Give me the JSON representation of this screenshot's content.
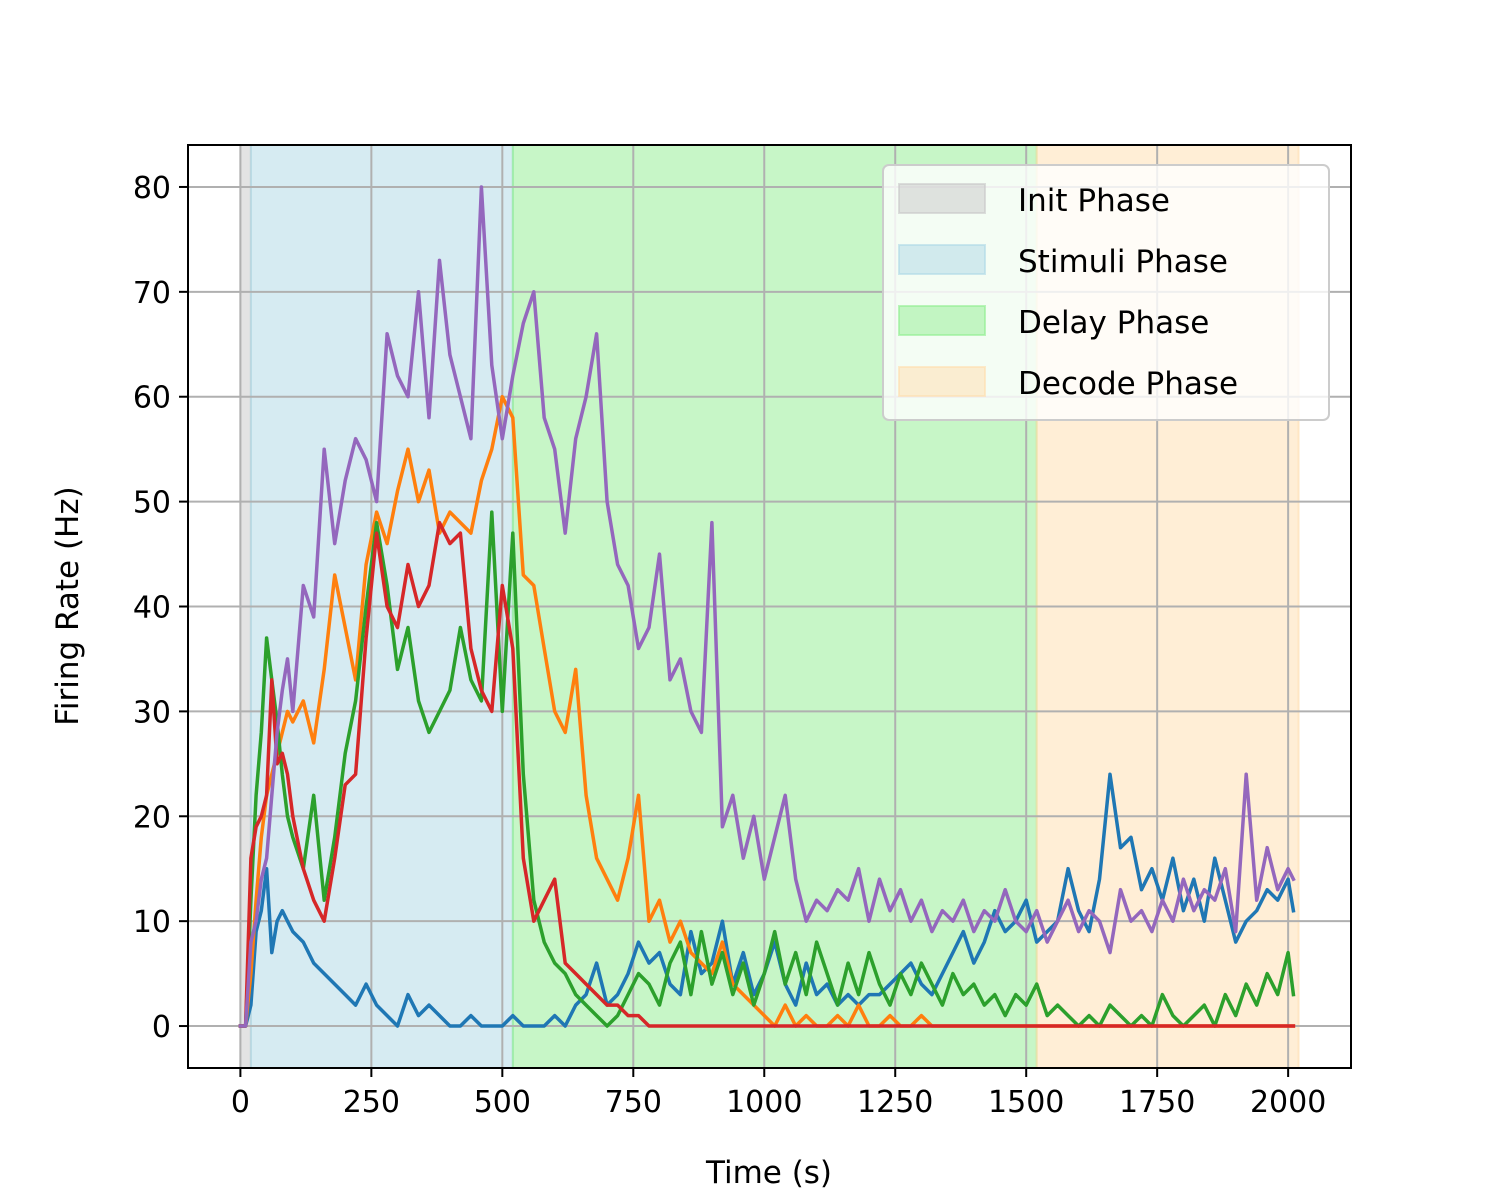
{
  "chart_data": {
    "type": "line",
    "title": "",
    "xlabel": "Time (s)",
    "ylabel": "Firing Rate (Hz)",
    "xlim": [
      -100,
      2120
    ],
    "ylim": [
      -4,
      84
    ],
    "xticks": [
      0,
      250,
      500,
      750,
      1000,
      1250,
      1500,
      1750,
      2000
    ],
    "yticks": [
      0,
      10,
      20,
      30,
      40,
      50,
      60,
      70,
      80
    ],
    "grid": true,
    "legend_position": "top-right",
    "phases": [
      {
        "name": "Init Phase",
        "start": 0,
        "end": 20,
        "color": "#c8c8c8"
      },
      {
        "name": "Stimuli Phase",
        "start": 20,
        "end": 520,
        "color": "#add8e6"
      },
      {
        "name": "Delay Phase",
        "start": 520,
        "end": 1520,
        "color": "#90ee90"
      },
      {
        "name": "Decode Phase",
        "start": 1520,
        "end": 2020,
        "color": "#ffdead"
      }
    ],
    "series": [
      {
        "color": "#1f77b4",
        "x": [
          0,
          10,
          20,
          30,
          40,
          50,
          60,
          70,
          80,
          90,
          100,
          120,
          140,
          160,
          180,
          200,
          220,
          240,
          260,
          280,
          300,
          320,
          340,
          360,
          380,
          400,
          420,
          440,
          460,
          480,
          500,
          520,
          540,
          560,
          580,
          600,
          620,
          640,
          660,
          680,
          700,
          720,
          740,
          760,
          780,
          800,
          820,
          840,
          860,
          880,
          900,
          920,
          940,
          960,
          980,
          1000,
          1020,
          1040,
          1060,
          1080,
          1100,
          1120,
          1140,
          1160,
          1180,
          1200,
          1220,
          1240,
          1260,
          1280,
          1300,
          1320,
          1340,
          1360,
          1380,
          1400,
          1420,
          1440,
          1460,
          1480,
          1500,
          1520,
          1540,
          1560,
          1580,
          1600,
          1620,
          1640,
          1660,
          1680,
          1700,
          1720,
          1740,
          1760,
          1780,
          1800,
          1820,
          1840,
          1860,
          1880,
          1900,
          1920,
          1940,
          1960,
          1980,
          2000,
          2010
        ],
        "values": [
          0,
          0,
          2,
          9,
          11,
          15,
          7,
          10,
          11,
          10,
          9,
          8,
          6,
          5,
          4,
          3,
          2,
          4,
          2,
          1,
          0,
          3,
          1,
          2,
          1,
          0,
          0,
          1,
          0,
          0,
          0,
          1,
          0,
          0,
          0,
          1,
          0,
          2,
          3,
          6,
          2,
          3,
          5,
          8,
          6,
          7,
          4,
          3,
          9,
          5,
          6,
          10,
          4,
          7,
          3,
          5,
          8,
          4,
          2,
          6,
          3,
          4,
          2,
          3,
          2,
          3,
          3,
          4,
          5,
          6,
          4,
          3,
          5,
          7,
          9,
          6,
          8,
          11,
          9,
          10,
          12,
          8,
          9,
          10,
          15,
          11,
          9,
          14,
          24,
          17,
          18,
          13,
          15,
          12,
          16,
          11,
          14,
          10,
          16,
          12,
          8,
          10,
          11,
          13,
          12,
          14,
          11
        ],
        "name": ""
      },
      {
        "color": "#ff7f0e",
        "x": [
          0,
          10,
          20,
          30,
          40,
          50,
          60,
          70,
          80,
          90,
          100,
          120,
          140,
          160,
          180,
          200,
          220,
          240,
          260,
          280,
          300,
          320,
          340,
          360,
          380,
          400,
          420,
          440,
          460,
          480,
          500,
          520,
          540,
          560,
          580,
          600,
          620,
          640,
          660,
          680,
          700,
          720,
          740,
          760,
          780,
          800,
          820,
          840,
          860,
          880,
          900,
          920,
          940,
          960,
          980,
          1000,
          1020,
          1040,
          1060,
          1080,
          1100,
          1120,
          1140,
          1160,
          1180,
          1200,
          1220,
          1240,
          1260,
          1280,
          1300,
          1320,
          1340,
          1360,
          1380,
          1400,
          1420,
          1440,
          1460,
          1480,
          1500,
          1520,
          1540,
          1560,
          1580,
          1600,
          1620,
          1640,
          1660,
          1680,
          1700,
          1720,
          1740,
          1760,
          1780,
          1800,
          1820,
          1840,
          1860,
          1880,
          1900,
          1920,
          1940,
          1960,
          1980,
          2000,
          2010
        ],
        "values": [
          0,
          0,
          5,
          12,
          18,
          22,
          24,
          26,
          28,
          30,
          29,
          31,
          27,
          34,
          43,
          38,
          33,
          44,
          49,
          46,
          51,
          55,
          50,
          53,
          47,
          49,
          48,
          47,
          52,
          55,
          60,
          58,
          43,
          42,
          36,
          30,
          28,
          34,
          22,
          16,
          14,
          12,
          16,
          22,
          10,
          12,
          8,
          10,
          7,
          6,
          5,
          8,
          4,
          3,
          2,
          1,
          0,
          2,
          0,
          1,
          0,
          0,
          1,
          0,
          2,
          0,
          0,
          1,
          0,
          0,
          1,
          0,
          0,
          0,
          0,
          0,
          0,
          0,
          0,
          0,
          0,
          0,
          0,
          0,
          0,
          0,
          0,
          0,
          0,
          0,
          0,
          0,
          0,
          0,
          0,
          0,
          0,
          0,
          0,
          0,
          0,
          0,
          0,
          0,
          0,
          0,
          0
        ],
        "name": ""
      },
      {
        "color": "#2ca02c",
        "x": [
          0,
          10,
          20,
          30,
          40,
          50,
          60,
          70,
          80,
          90,
          100,
          120,
          140,
          160,
          180,
          200,
          220,
          240,
          260,
          280,
          300,
          320,
          340,
          360,
          380,
          400,
          420,
          440,
          460,
          480,
          500,
          520,
          540,
          560,
          580,
          600,
          620,
          640,
          660,
          680,
          700,
          720,
          740,
          760,
          780,
          800,
          820,
          840,
          860,
          880,
          900,
          920,
          940,
          960,
          980,
          1000,
          1020,
          1040,
          1060,
          1080,
          1100,
          1120,
          1140,
          1160,
          1180,
          1200,
          1220,
          1240,
          1260,
          1280,
          1300,
          1320,
          1340,
          1360,
          1380,
          1400,
          1420,
          1440,
          1460,
          1480,
          1500,
          1520,
          1540,
          1560,
          1580,
          1600,
          1620,
          1640,
          1660,
          1680,
          1700,
          1720,
          1740,
          1760,
          1780,
          1800,
          1820,
          1840,
          1860,
          1880,
          1900,
          1920,
          1940,
          1960,
          1980,
          2000,
          2010
        ],
        "values": [
          0,
          0,
          12,
          22,
          28,
          37,
          33,
          29,
          24,
          20,
          18,
          15,
          22,
          12,
          18,
          26,
          31,
          40,
          48,
          42,
          34,
          38,
          31,
          28,
          30,
          32,
          38,
          33,
          31,
          49,
          30,
          47,
          24,
          12,
          8,
          6,
          5,
          3,
          2,
          1,
          0,
          1,
          3,
          5,
          4,
          2,
          6,
          8,
          3,
          9,
          4,
          7,
          3,
          6,
          2,
          5,
          9,
          4,
          7,
          3,
          8,
          5,
          2,
          6,
          3,
          7,
          4,
          2,
          5,
          3,
          6,
          4,
          2,
          5,
          3,
          4,
          2,
          3,
          1,
          3,
          2,
          4,
          1,
          2,
          1,
          0,
          1,
          0,
          2,
          1,
          0,
          1,
          0,
          3,
          1,
          0,
          1,
          2,
          0,
          3,
          1,
          4,
          2,
          5,
          3,
          7,
          3
        ],
        "name": ""
      },
      {
        "color": "#d62728",
        "x": [
          0,
          10,
          20,
          30,
          40,
          50,
          60,
          70,
          80,
          90,
          100,
          120,
          140,
          160,
          180,
          200,
          220,
          240,
          260,
          280,
          300,
          320,
          340,
          360,
          380,
          400,
          420,
          440,
          460,
          480,
          500,
          520,
          540,
          560,
          580,
          600,
          620,
          640,
          660,
          680,
          700,
          720,
          740,
          760,
          780,
          800,
          820,
          840,
          860,
          880,
          900,
          920,
          940,
          960,
          980,
          1000,
          1020,
          1040,
          1060,
          1080,
          1100,
          1120,
          1140,
          1160,
          1180,
          1200,
          1220,
          1240,
          1260,
          1280,
          1300,
          1320,
          1340,
          1360,
          1380,
          1400,
          1420,
          1440,
          1460,
          1480,
          1500,
          1520,
          1540,
          1560,
          1580,
          1600,
          1620,
          1640,
          1660,
          1680,
          1700,
          1720,
          1740,
          1760,
          1780,
          1800,
          1820,
          1840,
          1860,
          1880,
          1900,
          1920,
          1940,
          1960,
          1980,
          2000,
          2010
        ],
        "values": [
          0,
          0,
          16,
          19,
          20,
          22,
          33,
          25,
          26,
          24,
          20,
          15,
          12,
          10,
          16,
          23,
          24,
          37,
          47,
          40,
          38,
          44,
          40,
          42,
          48,
          46,
          47,
          36,
          32,
          30,
          42,
          36,
          16,
          10,
          12,
          14,
          6,
          5,
          4,
          3,
          2,
          2,
          1,
          1,
          0,
          0,
          0,
          0,
          0,
          0,
          0,
          0,
          0,
          0,
          0,
          0,
          0,
          0,
          0,
          0,
          0,
          0,
          0,
          0,
          0,
          0,
          0,
          0,
          0,
          0,
          0,
          0,
          0,
          0,
          0,
          0,
          0,
          0,
          0,
          0,
          0,
          0,
          0,
          0,
          0,
          0,
          0,
          0,
          0,
          0,
          0,
          0,
          0,
          0,
          0,
          0,
          0,
          0,
          0,
          0,
          0,
          0,
          0,
          0,
          0,
          0,
          0
        ],
        "name": ""
      },
      {
        "color": "#9467bd",
        "x": [
          0,
          10,
          20,
          30,
          40,
          50,
          60,
          70,
          80,
          90,
          100,
          120,
          140,
          160,
          180,
          200,
          220,
          240,
          260,
          280,
          300,
          320,
          340,
          360,
          380,
          400,
          420,
          440,
          460,
          480,
          500,
          520,
          540,
          560,
          580,
          600,
          620,
          640,
          660,
          680,
          700,
          720,
          740,
          760,
          780,
          800,
          820,
          840,
          860,
          880,
          900,
          920,
          940,
          960,
          980,
          1000,
          1020,
          1040,
          1060,
          1080,
          1100,
          1120,
          1140,
          1160,
          1180,
          1200,
          1220,
          1240,
          1260,
          1280,
          1300,
          1320,
          1340,
          1360,
          1380,
          1400,
          1420,
          1440,
          1460,
          1480,
          1500,
          1520,
          1540,
          1560,
          1580,
          1600,
          1620,
          1640,
          1660,
          1680,
          1700,
          1720,
          1740,
          1760,
          1780,
          1800,
          1820,
          1840,
          1860,
          1880,
          1900,
          1920,
          1940,
          1960,
          1980,
          2000,
          2010
        ],
        "values": [
          0,
          0,
          8,
          10,
          14,
          16,
          22,
          28,
          32,
          35,
          30,
          42,
          39,
          55,
          46,
          52,
          56,
          54,
          50,
          66,
          62,
          60,
          70,
          58,
          73,
          64,
          60,
          56,
          80,
          63,
          56,
          62,
          67,
          70,
          58,
          55,
          47,
          56,
          60,
          66,
          50,
          44,
          42,
          36,
          38,
          45,
          33,
          35,
          30,
          28,
          48,
          19,
          22,
          16,
          20,
          14,
          18,
          22,
          14,
          10,
          12,
          11,
          13,
          12,
          15,
          10,
          14,
          11,
          13,
          10,
          12,
          9,
          11,
          10,
          12,
          9,
          11,
          10,
          13,
          10,
          9,
          11,
          8,
          10,
          12,
          9,
          11,
          10,
          7,
          13,
          10,
          11,
          9,
          12,
          10,
          14,
          11,
          13,
          12,
          15,
          9,
          24,
          12,
          17,
          13,
          15,
          14
        ],
        "name": ""
      }
    ]
  },
  "legend": {
    "items": [
      {
        "label": "Init Phase"
      },
      {
        "label": "Stimuli Phase"
      },
      {
        "label": "Delay Phase"
      },
      {
        "label": "Decode Phase"
      }
    ]
  }
}
